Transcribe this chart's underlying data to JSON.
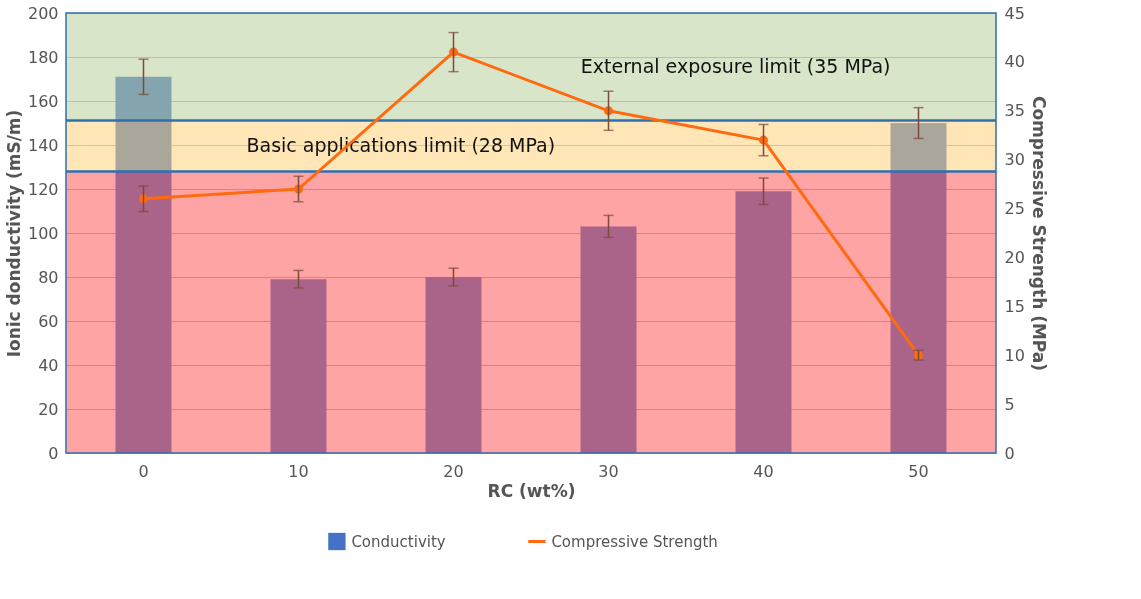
{
  "chart_data": {
    "type": "bar",
    "xlabel": "RC (wt%)",
    "ylabel": "Ionic donductivity (mS/m)",
    "y2label": "Compressive Strength (MPa)",
    "categories": [
      "0",
      "10",
      "20",
      "30",
      "40",
      "50"
    ],
    "series": [
      {
        "name": "Conductivity",
        "color": "#4472c4",
        "values": [
          171,
          79,
          80,
          103,
          119,
          150
        ],
        "errors": [
          8,
          4,
          4,
          5,
          6,
          7
        ]
      },
      {
        "name": "Compressive Strength",
        "type": "line",
        "axis": "y2",
        "color": "#ff6a10",
        "marker": "circle",
        "values": [
          26,
          27,
          41,
          35,
          32,
          10
        ],
        "errors": [
          1.3,
          1.3,
          2,
          2,
          1.6,
          0.5
        ]
      }
    ],
    "ylim": [
      0,
      200
    ],
    "yticks": [
      0,
      20,
      40,
      60,
      80,
      100,
      120,
      140,
      160,
      180,
      200
    ],
    "y2lim": [
      0,
      45
    ],
    "y2ticks": [
      0,
      5,
      10,
      15,
      20,
      25,
      30,
      35,
      40,
      45
    ],
    "bands": [
      {
        "axis": "y2",
        "from": 0,
        "to": 28.8,
        "label": null,
        "color": "#ff5a5a"
      },
      {
        "axis": "y2",
        "from": 28.8,
        "to": 34,
        "label": "Basic applications limit        (28 MPa)",
        "color": "#ffd27a"
      },
      {
        "axis": "y2",
        "from": 34,
        "to": 45,
        "label": "External exposure limit (35 MPa)",
        "color": "#b9d09a"
      }
    ],
    "ref_lines": [
      {
        "axis": "y2",
        "value": 28.8,
        "label": null,
        "color": "#2e6fb0"
      },
      {
        "axis": "y2",
        "value": 34,
        "label": null,
        "color": "#2e6fb0"
      }
    ],
    "grid": "y",
    "legend": "bottom"
  }
}
